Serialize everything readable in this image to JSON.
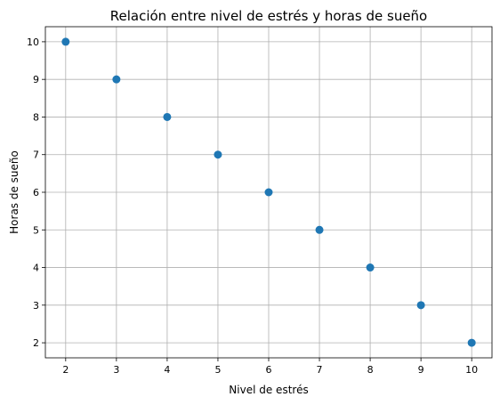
{
  "chart_data": {
    "type": "scatter",
    "title": "Relación entre nivel de estrés y horas de sueño",
    "xlabel": "Nivel de estrés",
    "ylabel": "Horas de sueño",
    "xlim": [
      1.6,
      10.4
    ],
    "ylim": [
      1.6,
      10.4
    ],
    "xticks": [
      2,
      3,
      4,
      5,
      6,
      7,
      8,
      9,
      10
    ],
    "yticks": [
      2,
      3,
      4,
      5,
      6,
      7,
      8,
      9,
      10
    ],
    "grid": true,
    "marker_color": "#1f77b4",
    "series": [
      {
        "x": [
          2,
          3,
          4,
          5,
          6,
          7,
          8,
          9,
          10
        ],
        "y": [
          10,
          9,
          8,
          7,
          6,
          5,
          4,
          3,
          2
        ]
      }
    ]
  }
}
